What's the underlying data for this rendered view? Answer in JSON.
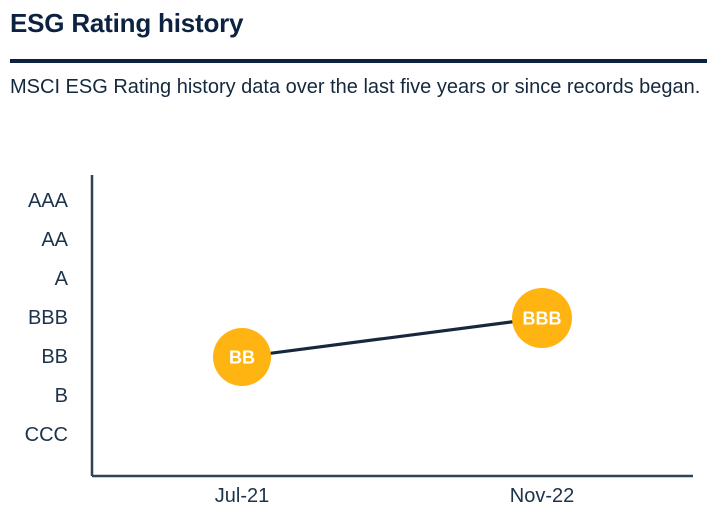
{
  "header": {
    "title": "ESG Rating history",
    "subtitle": "MSCI ESG Rating history data over the last five years or since records began."
  },
  "chart_data": {
    "type": "line",
    "title": "ESG Rating history",
    "y_axis_categories": [
      "AAA",
      "AA",
      "A",
      "BBB",
      "BB",
      "B",
      "CCC"
    ],
    "x_categories": [
      "Jul-21",
      "Nov-22"
    ],
    "points": [
      {
        "date": "Jul-21",
        "rating": "BB"
      },
      {
        "date": "Nov-22",
        "rating": "BBB"
      }
    ],
    "legend": "none",
    "grid": "off",
    "colors": {
      "marker": "#ffb412",
      "marker_label": "#ffffff",
      "trend_line": "#16293c",
      "axis": "#2c4459",
      "heading_navy": "#0d2240"
    }
  }
}
